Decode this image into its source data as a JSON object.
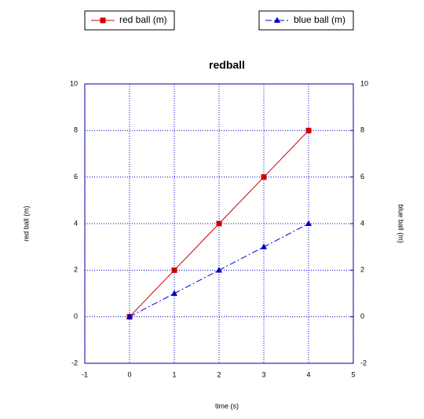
{
  "chart_data": {
    "type": "line",
    "title": "redball",
    "x_label": "time (s)",
    "y_label": "red ball (m)",
    "y2_label": "blue ball (m)",
    "x": [
      0,
      1,
      2,
      3,
      4
    ],
    "series": [
      {
        "name": "red ball (m)",
        "color": "#cc0000",
        "marker": "square",
        "dash": "solid",
        "values": [
          0,
          2,
          4,
          6,
          8
        ]
      },
      {
        "name": "blue ball (m)",
        "color": "#0000cc",
        "marker": "triangle",
        "dash": "dashdot",
        "axis": "y2",
        "values": [
          0,
          1,
          2,
          3,
          4
        ]
      }
    ],
    "xlim": [
      -1,
      5
    ],
    "xticks": [
      -1,
      0,
      1,
      2,
      3,
      4,
      5
    ],
    "ylim": [
      -2,
      10
    ],
    "yticks": [
      -2,
      0,
      2,
      4,
      6,
      8,
      10
    ],
    "y2lim": [
      -2,
      10
    ],
    "y2ticks": [
      -2,
      0,
      2,
      4,
      6,
      8,
      10
    ],
    "grid": true
  }
}
